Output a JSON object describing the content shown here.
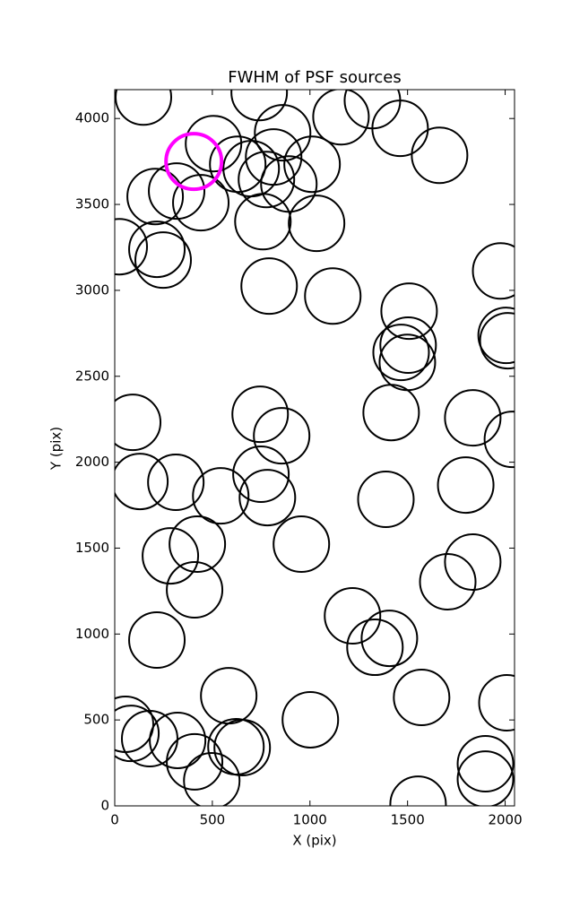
{
  "chart_data": {
    "type": "scatter",
    "title": "FWHM of PSF sources",
    "xlabel": "X (pix)",
    "ylabel": "Y (pix)",
    "x": [
      147,
      740,
      1320,
      1462,
      1159,
      860,
      506,
      630,
      814,
      699,
      777,
      892,
      1011,
      207,
      317,
      441,
      759,
      1034,
      1664,
      23,
      216,
      248,
      791,
      1117,
      1977,
      1508,
      2005,
      2014,
      1503,
      1467,
      1499,
      1416,
      92,
      745,
      855,
      2037,
      1834,
      129,
      313,
      749,
      543,
      782,
      1389,
      1798,
      423,
      285,
      956,
      1706,
      1834,
      409,
      216,
      1218,
      1407,
      1333,
      1572,
      584,
      2009,
      1002,
      55,
      83,
      179,
      322,
      621,
      653,
      409,
      497,
      1899,
      1899,
      1554
    ],
    "y": [
      4125,
      4151,
      4104,
      3943,
      4010,
      3917,
      3854,
      3734,
      3776,
      3708,
      3645,
      3619,
      3734,
      3546,
      3578,
      3510,
      3400,
      3390,
      3786,
      3254,
      3239,
      3176,
      3025,
      2967,
      3113,
      2879,
      2738,
      2707,
      2681,
      2639,
      2581,
      2289,
      2232,
      2279,
      2154,
      2133,
      2258,
      1888,
      1883,
      1930,
      1804,
      1794,
      1784,
      1867,
      1523,
      1455,
      1523,
      1304,
      1419,
      1257,
      965,
      1106,
      975,
      923,
      631,
      641,
      600,
      501,
      475,
      422,
      391,
      381,
      344,
      339,
      256,
      146,
      245,
      156,
      10
    ],
    "color": "#000000",
    "highlight": {
      "x": [
        405
      ],
      "y": [
        3750
      ],
      "color": "#ff00ff"
    },
    "xlim": [
      0,
      2048
    ],
    "ylim": [
      0,
      4168
    ],
    "xticks": [
      0,
      500,
      1000,
      1500,
      2000
    ],
    "yticks": [
      0,
      500,
      1000,
      1500,
      2000,
      2500,
      3000,
      3500,
      4000
    ]
  }
}
